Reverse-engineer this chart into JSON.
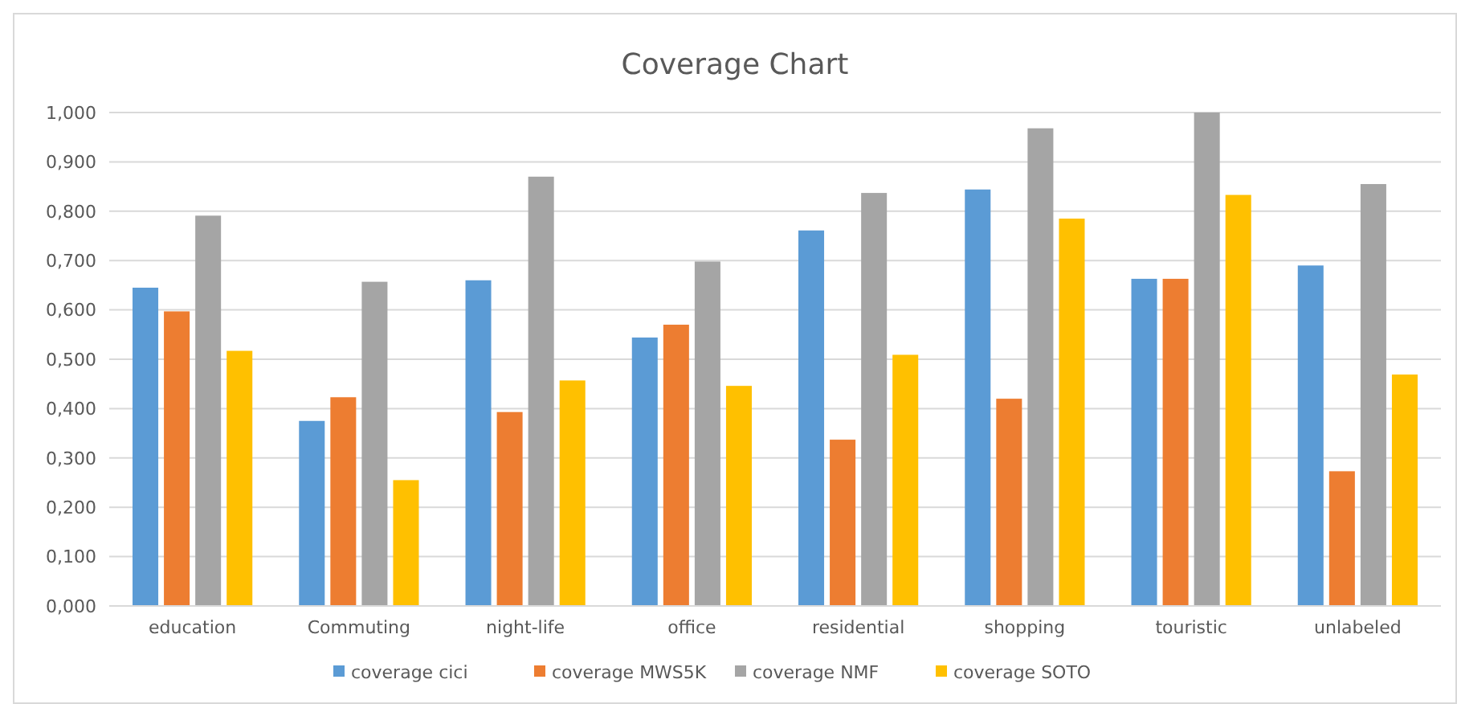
{
  "chart_data": {
    "type": "bar",
    "title": "Coverage Chart",
    "categories": [
      "education",
      "Commuting",
      "night-life",
      "office",
      "residential",
      "shopping",
      "touristic",
      "unlabeled"
    ],
    "series": [
      {
        "name": "coverage cici",
        "color": "#5b9bd5",
        "values": [
          0.645,
          0.375,
          0.66,
          0.544,
          0.761,
          0.844,
          0.663,
          0.69
        ]
      },
      {
        "name": "coverage MWS5K",
        "color": "#ed7d31",
        "values": [
          0.597,
          0.423,
          0.393,
          0.57,
          0.337,
          0.42,
          0.663,
          0.273
        ]
      },
      {
        "name": "coverage NMF",
        "color": "#a5a5a5",
        "values": [
          0.791,
          0.657,
          0.87,
          0.698,
          0.837,
          0.968,
          1.0,
          0.855
        ]
      },
      {
        "name": "coverage SOTO",
        "color": "#ffc000",
        "values": [
          0.517,
          0.255,
          0.457,
          0.446,
          0.509,
          0.785,
          0.833,
          0.469
        ]
      }
    ],
    "ylim": [
      0,
      1
    ],
    "yticks": [
      {
        "value": 0,
        "label": "0,000"
      },
      {
        "value": 0.1,
        "label": "0,100"
      },
      {
        "value": 0.2,
        "label": "0,200"
      },
      {
        "value": 0.3,
        "label": "0,300"
      },
      {
        "value": 0.4,
        "label": "0,400"
      },
      {
        "value": 0.5,
        "label": "0,500"
      },
      {
        "value": 0.6,
        "label": "0,600"
      },
      {
        "value": 0.7,
        "label": "0,700"
      },
      {
        "value": 0.8,
        "label": "0,800"
      },
      {
        "value": 0.9,
        "label": "0,900"
      },
      {
        "value": 1,
        "label": "1,000"
      }
    ],
    "grid": "y",
    "legend": "bottom"
  }
}
